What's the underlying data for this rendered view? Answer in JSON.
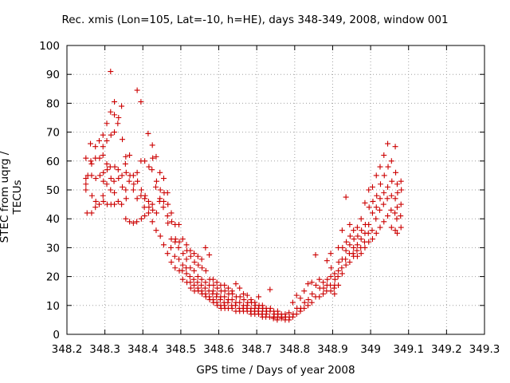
{
  "chart_data": {
    "type": "scatter",
    "title": "Rec. xmis (Lon=105, Lat=-10, h=HE), days 348-349, 2008, window 001",
    "xlabel": "GPS time / Days of year 2008",
    "ylabel": "STEC from uqrg / TECUs",
    "xlim": [
      348.2,
      349.3
    ],
    "ylim": [
      0,
      100
    ],
    "xticks": [
      "348.2",
      "348.3",
      "348.4",
      "348.5",
      "348.6",
      "348.7",
      "348.8",
      "348.9",
      "349",
      "349.1",
      "349.2",
      "349.3"
    ],
    "yticks": [
      "0",
      "10",
      "20",
      "30",
      "40",
      "50",
      "60",
      "70",
      "80",
      "90",
      "100"
    ],
    "grid": true,
    "marker": "+",
    "color": "#cc0000",
    "points": [
      [
        348.25,
        54
      ],
      [
        348.25,
        52
      ],
      [
        348.25,
        50
      ],
      [
        348.25,
        61
      ],
      [
        348.255,
        55
      ],
      [
        348.253,
        42
      ],
      [
        348.262,
        66
      ],
      [
        348.263,
        60
      ],
      [
        348.265,
        59
      ],
      [
        348.265,
        55
      ],
      [
        348.266,
        48
      ],
      [
        348.265,
        42
      ],
      [
        348.275,
        65
      ],
      [
        348.275,
        61
      ],
      [
        348.276,
        54
      ],
      [
        348.276,
        46
      ],
      [
        348.275,
        44
      ],
      [
        348.285,
        67
      ],
      [
        348.286,
        61
      ],
      [
        348.287,
        55
      ],
      [
        348.285,
        45
      ],
      [
        348.295,
        69
      ],
      [
        348.295,
        65
      ],
      [
        348.295,
        62
      ],
      [
        348.296,
        56
      ],
      [
        348.296,
        53
      ],
      [
        348.295,
        48
      ],
      [
        348.296,
        46
      ],
      [
        348.305,
        73
      ],
      [
        348.305,
        67
      ],
      [
        348.305,
        59
      ],
      [
        348.306,
        57
      ],
      [
        348.305,
        52
      ],
      [
        348.306,
        45
      ],
      [
        348.315,
        91
      ],
      [
        348.315,
        77
      ],
      [
        348.316,
        69
      ],
      [
        348.314,
        58
      ],
      [
        348.316,
        54
      ],
      [
        348.315,
        50
      ],
      [
        348.316,
        45
      ],
      [
        348.325,
        80.5
      ],
      [
        348.325,
        76
      ],
      [
        348.325,
        70
      ],
      [
        348.326,
        58
      ],
      [
        348.324,
        53
      ],
      [
        348.325,
        49
      ],
      [
        348.325,
        45
      ],
      [
        348.336,
        75
      ],
      [
        348.334,
        73
      ],
      [
        348.335,
        57
      ],
      [
        348.336,
        54
      ],
      [
        348.335,
        46
      ],
      [
        348.344,
        79
      ],
      [
        348.346,
        67.5
      ],
      [
        348.345,
        55
      ],
      [
        348.346,
        51
      ],
      [
        348.344,
        45
      ],
      [
        348.355,
        61.5
      ],
      [
        348.354,
        59
      ],
      [
        348.356,
        56
      ],
      [
        348.355,
        50
      ],
      [
        348.356,
        47
      ],
      [
        348.355,
        40
      ],
      [
        348.365,
        62
      ],
      [
        348.366,
        55
      ],
      [
        348.364,
        53
      ],
      [
        348.365,
        39
      ],
      [
        348.375,
        55
      ],
      [
        348.376,
        52
      ],
      [
        348.375,
        50
      ],
      [
        348.375,
        38.5
      ],
      [
        348.385,
        84.5
      ],
      [
        348.385,
        56
      ],
      [
        348.386,
        53
      ],
      [
        348.385,
        47
      ],
      [
        348.384,
        39
      ],
      [
        348.395,
        80.5
      ],
      [
        348.395,
        60
      ],
      [
        348.396,
        50
      ],
      [
        348.395,
        48
      ],
      [
        348.396,
        40
      ],
      [
        348.405,
        60
      ],
      [
        348.406,
        48
      ],
      [
        348.405,
        47
      ],
      [
        348.404,
        44
      ],
      [
        348.405,
        41
      ],
      [
        348.414,
        69.5
      ],
      [
        348.416,
        58
      ],
      [
        348.415,
        46
      ],
      [
        348.416,
        44
      ],
      [
        348.415,
        42
      ],
      [
        348.425,
        65.5
      ],
      [
        348.426,
        61
      ],
      [
        348.424,
        57
      ],
      [
        348.425,
        45
      ],
      [
        348.426,
        43
      ],
      [
        348.425,
        39
      ],
      [
        348.435,
        61.5
      ],
      [
        348.436,
        53
      ],
      [
        348.434,
        51
      ],
      [
        348.436,
        42
      ],
      [
        348.435,
        36
      ],
      [
        348.445,
        56
      ],
      [
        348.446,
        50
      ],
      [
        348.445,
        47
      ],
      [
        348.444,
        46
      ],
      [
        348.446,
        34
      ],
      [
        348.455,
        54
      ],
      [
        348.456,
        49
      ],
      [
        348.455,
        46
      ],
      [
        348.454,
        44
      ],
      [
        348.455,
        31
      ],
      [
        348.465,
        49
      ],
      [
        348.466,
        45
      ],
      [
        348.465,
        41
      ],
      [
        348.466,
        38.5
      ],
      [
        348.465,
        28
      ],
      [
        348.475,
        42
      ],
      [
        348.476,
        39
      ],
      [
        348.475,
        33
      ],
      [
        348.474,
        30
      ],
      [
        348.475,
        25
      ],
      [
        348.485,
        38
      ],
      [
        348.486,
        33
      ],
      [
        348.485,
        32
      ],
      [
        348.484,
        27
      ],
      [
        348.485,
        23
      ],
      [
        348.495,
        38
      ],
      [
        348.496,
        32
      ],
      [
        348.494,
        30
      ],
      [
        348.495,
        26
      ],
      [
        348.496,
        22
      ],
      [
        348.505,
        33
      ],
      [
        348.506,
        28
      ],
      [
        348.505,
        24
      ],
      [
        348.504,
        22
      ],
      [
        348.505,
        19
      ],
      [
        348.515,
        31
      ],
      [
        348.516,
        29
      ],
      [
        348.515,
        26
      ],
      [
        348.514,
        23
      ],
      [
        348.515,
        21
      ],
      [
        348.516,
        18
      ],
      [
        348.525,
        29
      ],
      [
        348.526,
        27
      ],
      [
        348.525,
        23
      ],
      [
        348.524,
        20
      ],
      [
        348.525,
        18
      ],
      [
        348.526,
        16
      ],
      [
        348.535,
        28
      ],
      [
        348.536,
        25
      ],
      [
        348.535,
        22
      ],
      [
        348.534,
        19
      ],
      [
        348.535,
        17
      ],
      [
        348.536,
        15
      ],
      [
        348.545,
        27
      ],
      [
        348.546,
        24
      ],
      [
        348.545,
        20
      ],
      [
        348.544,
        18
      ],
      [
        348.545,
        16
      ],
      [
        348.546,
        15
      ],
      [
        348.555,
        26
      ],
      [
        348.556,
        23
      ],
      [
        348.555,
        19
      ],
      [
        348.554,
        17
      ],
      [
        348.555,
        15
      ],
      [
        348.556,
        14
      ],
      [
        348.565,
        30
      ],
      [
        348.566,
        22
      ],
      [
        348.565,
        18
      ],
      [
        348.564,
        16
      ],
      [
        348.565,
        14
      ],
      [
        348.566,
        13
      ],
      [
        348.575,
        27.5
      ],
      [
        348.576,
        19
      ],
      [
        348.575,
        17
      ],
      [
        348.574,
        15
      ],
      [
        348.575,
        13
      ],
      [
        348.576,
        12
      ],
      [
        348.585,
        19
      ],
      [
        348.586,
        17
      ],
      [
        348.585,
        15
      ],
      [
        348.584,
        14
      ],
      [
        348.585,
        12
      ],
      [
        348.586,
        11
      ],
      [
        348.595,
        18
      ],
      [
        348.596,
        16
      ],
      [
        348.595,
        14
      ],
      [
        348.594,
        13
      ],
      [
        348.595,
        11
      ],
      [
        348.596,
        10
      ],
      [
        348.605,
        17
      ],
      [
        348.606,
        15
      ],
      [
        348.605,
        13
      ],
      [
        348.604,
        12
      ],
      [
        348.605,
        10
      ],
      [
        348.606,
        9
      ],
      [
        348.615,
        17
      ],
      [
        348.616,
        15
      ],
      [
        348.615,
        13
      ],
      [
        348.614,
        11
      ],
      [
        348.615,
        10
      ],
      [
        348.616,
        9
      ],
      [
        348.625,
        16
      ],
      [
        348.626,
        14
      ],
      [
        348.625,
        12
      ],
      [
        348.624,
        11
      ],
      [
        348.625,
        9
      ],
      [
        348.635,
        15
      ],
      [
        348.636,
        14
      ],
      [
        348.635,
        12
      ],
      [
        348.634,
        10
      ],
      [
        348.635,
        9
      ],
      [
        348.645,
        17.5
      ],
      [
        348.646,
        13
      ],
      [
        348.645,
        11
      ],
      [
        348.644,
        10
      ],
      [
        348.645,
        8
      ],
      [
        348.655,
        16
      ],
      [
        348.656,
        13
      ],
      [
        348.655,
        11
      ],
      [
        348.654,
        9
      ],
      [
        348.655,
        8
      ],
      [
        348.665,
        14
      ],
      [
        348.666,
        12
      ],
      [
        348.665,
        10
      ],
      [
        348.664,
        9
      ],
      [
        348.665,
        8
      ],
      [
        348.675,
        13.5
      ],
      [
        348.676,
        11
      ],
      [
        348.675,
        10
      ],
      [
        348.674,
        9
      ],
      [
        348.675,
        8
      ],
      [
        348.685,
        12
      ],
      [
        348.686,
        11
      ],
      [
        348.685,
        9
      ],
      [
        348.684,
        8
      ],
      [
        348.685,
        7
      ],
      [
        348.695,
        11
      ],
      [
        348.696,
        10
      ],
      [
        348.695,
        9
      ],
      [
        348.694,
        8
      ],
      [
        348.695,
        7
      ],
      [
        348.705,
        13
      ],
      [
        348.706,
        10
      ],
      [
        348.705,
        9
      ],
      [
        348.704,
        8
      ],
      [
        348.705,
        7
      ],
      [
        348.715,
        10
      ],
      [
        348.716,
        9
      ],
      [
        348.715,
        8
      ],
      [
        348.714,
        7
      ],
      [
        348.715,
        6
      ],
      [
        348.725,
        9
      ],
      [
        348.726,
        8
      ],
      [
        348.725,
        7
      ],
      [
        348.724,
        6
      ],
      [
        348.735,
        15.5
      ],
      [
        348.736,
        9
      ],
      [
        348.735,
        8
      ],
      [
        348.734,
        6
      ],
      [
        348.745,
        8
      ],
      [
        348.746,
        7
      ],
      [
        348.745,
        6
      ],
      [
        348.744,
        5.5
      ],
      [
        348.755,
        8
      ],
      [
        348.756,
        7
      ],
      [
        348.755,
        6
      ],
      [
        348.754,
        5
      ],
      [
        348.765,
        7
      ],
      [
        348.766,
        6
      ],
      [
        348.765,
        5.5
      ],
      [
        348.775,
        7
      ],
      [
        348.776,
        6
      ],
      [
        348.775,
        5
      ],
      [
        348.785,
        7.5
      ],
      [
        348.786,
        6
      ],
      [
        348.785,
        5
      ],
      [
        348.795,
        11
      ],
      [
        348.796,
        7
      ],
      [
        348.795,
        6
      ],
      [
        348.805,
        13.5
      ],
      [
        348.806,
        9
      ],
      [
        348.805,
        7
      ],
      [
        348.815,
        12.5
      ],
      [
        348.816,
        9
      ],
      [
        348.815,
        8
      ],
      [
        348.825,
        15
      ],
      [
        348.826,
        11
      ],
      [
        348.825,
        9
      ],
      [
        348.835,
        17.5
      ],
      [
        348.836,
        12
      ],
      [
        348.835,
        10
      ],
      [
        348.845,
        18
      ],
      [
        348.846,
        14
      ],
      [
        348.845,
        11
      ],
      [
        348.855,
        27.5
      ],
      [
        348.856,
        17
      ],
      [
        348.855,
        13
      ],
      [
        348.865,
        19
      ],
      [
        348.866,
        16
      ],
      [
        348.865,
        13
      ],
      [
        348.875,
        18
      ],
      [
        348.876,
        16
      ],
      [
        348.875,
        14
      ],
      [
        348.885,
        25.5
      ],
      [
        348.886,
        19
      ],
      [
        348.885,
        17
      ],
      [
        348.884,
        15
      ],
      [
        348.895,
        28
      ],
      [
        348.896,
        23
      ],
      [
        348.895,
        20
      ],
      [
        348.894,
        17
      ],
      [
        348.895,
        15
      ],
      [
        348.905,
        21
      ],
      [
        348.906,
        19
      ],
      [
        348.905,
        17
      ],
      [
        348.904,
        16
      ],
      [
        348.905,
        14
      ],
      [
        348.915,
        30
      ],
      [
        348.916,
        25
      ],
      [
        348.915,
        22
      ],
      [
        348.914,
        20
      ],
      [
        348.915,
        17
      ],
      [
        348.925,
        36
      ],
      [
        348.926,
        30
      ],
      [
        348.925,
        26
      ],
      [
        348.924,
        23
      ],
      [
        348.925,
        21
      ],
      [
        348.935,
        47.5
      ],
      [
        348.936,
        32
      ],
      [
        348.935,
        29
      ],
      [
        348.934,
        26
      ],
      [
        348.935,
        24
      ],
      [
        348.945,
        38
      ],
      [
        348.946,
        34
      ],
      [
        348.945,
        31
      ],
      [
        348.944,
        28
      ],
      [
        348.945,
        25
      ],
      [
        348.955,
        36
      ],
      [
        348.956,
        33
      ],
      [
        348.955,
        30
      ],
      [
        348.954,
        28
      ],
      [
        348.955,
        27
      ],
      [
        348.965,
        37
      ],
      [
        348.966,
        34
      ],
      [
        348.965,
        31
      ],
      [
        348.964,
        29
      ],
      [
        348.965,
        27
      ],
      [
        348.975,
        40
      ],
      [
        348.976,
        36
      ],
      [
        348.975,
        33
      ],
      [
        348.974,
        30
      ],
      [
        348.975,
        28
      ],
      [
        348.985,
        45.5
      ],
      [
        348.986,
        38
      ],
      [
        348.985,
        35
      ],
      [
        348.984,
        32
      ],
      [
        348.985,
        30
      ],
      [
        348.995,
        50
      ],
      [
        348.996,
        44
      ],
      [
        348.995,
        38
      ],
      [
        348.994,
        35
      ],
      [
        348.995,
        32
      ],
      [
        349.005,
        51
      ],
      [
        349.006,
        46
      ],
      [
        349.005,
        42
      ],
      [
        349.004,
        36
      ],
      [
        349.005,
        33
      ],
      [
        349.015,
        55
      ],
      [
        349.016,
        48
      ],
      [
        349.015,
        44
      ],
      [
        349.014,
        40
      ],
      [
        349.015,
        35
      ],
      [
        349.025,
        58
      ],
      [
        349.026,
        52
      ],
      [
        349.025,
        47
      ],
      [
        349.024,
        43
      ],
      [
        349.025,
        37
      ],
      [
        349.035,
        62
      ],
      [
        349.036,
        55
      ],
      [
        349.035,
        49
      ],
      [
        349.034,
        45
      ],
      [
        349.035,
        39
      ],
      [
        349.045,
        66
      ],
      [
        349.046,
        58
      ],
      [
        349.045,
        51
      ],
      [
        349.044,
        47
      ],
      [
        349.045,
        41
      ],
      [
        349.055,
        60
      ],
      [
        349.056,
        53
      ],
      [
        349.055,
        48
      ],
      [
        349.054,
        43
      ],
      [
        349.055,
        37
      ],
      [
        349.065,
        65
      ],
      [
        349.066,
        56
      ],
      [
        349.065,
        47
      ],
      [
        349.064,
        42
      ],
      [
        349.065,
        36
      ],
      [
        349.07,
        52
      ],
      [
        349.071,
        49
      ],
      [
        349.07,
        44
      ],
      [
        349.069,
        40
      ],
      [
        349.07,
        35
      ],
      [
        349.08,
        53
      ],
      [
        349.081,
        50
      ],
      [
        349.08,
        45
      ],
      [
        349.079,
        41
      ],
      [
        349.08,
        37
      ]
    ]
  }
}
